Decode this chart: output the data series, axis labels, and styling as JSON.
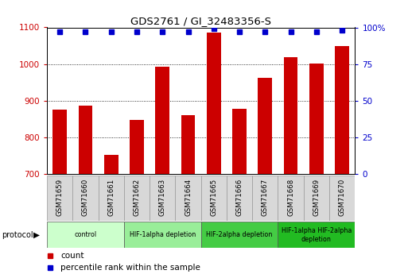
{
  "title": "GDS2761 / GI_32483356-S",
  "samples": [
    "GSM71659",
    "GSM71660",
    "GSM71661",
    "GSM71662",
    "GSM71663",
    "GSM71664",
    "GSM71665",
    "GSM71666",
    "GSM71667",
    "GSM71668",
    "GSM71669",
    "GSM71670"
  ],
  "counts": [
    875,
    887,
    752,
    848,
    993,
    860,
    1085,
    877,
    963,
    1018,
    1002,
    1050
  ],
  "percentiles": [
    97,
    97,
    97,
    97,
    97,
    97,
    99,
    97,
    97,
    97,
    97,
    98
  ],
  "bar_color": "#cc0000",
  "dot_color": "#0000cc",
  "ylim_left": [
    700,
    1100
  ],
  "ylim_right": [
    0,
    100
  ],
  "yticks_left": [
    700,
    800,
    900,
    1000,
    1100
  ],
  "yticks_right": [
    0,
    25,
    50,
    75,
    100
  ],
  "yticklabels_right": [
    "0",
    "25",
    "50",
    "75",
    "100%"
  ],
  "groups": [
    {
      "label": "control",
      "start": 0,
      "end": 2,
      "color": "#ccffcc"
    },
    {
      "label": "HIF-1alpha depletion",
      "start": 3,
      "end": 5,
      "color": "#99ee99"
    },
    {
      "label": "HIF-2alpha depletion",
      "start": 6,
      "end": 8,
      "color": "#44cc44"
    },
    {
      "label": "HIF-1alpha HIF-2alpha\ndepletion",
      "start": 9,
      "end": 11,
      "color": "#22bb22"
    }
  ],
  "protocol_label": "protocol",
  "legend_count_label": "count",
  "legend_percentile_label": "percentile rank within the sample",
  "bar_width": 0.55,
  "label_box_color": "#d8d8d8",
  "fig_width": 5.13,
  "fig_height": 3.45
}
